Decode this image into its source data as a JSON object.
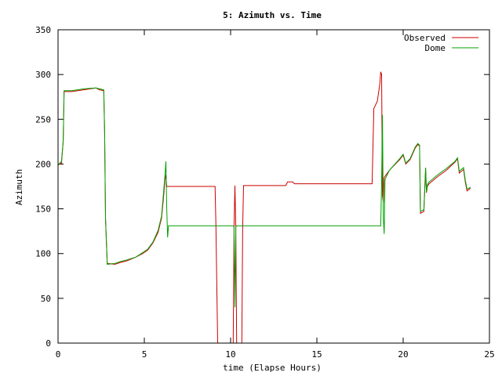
{
  "chart_data": {
    "type": "line",
    "title": "5: Azimuth vs. Time",
    "xlabel": "time (Elapse Hours)",
    "ylabel": "Azimuth",
    "xlim": [
      0,
      25
    ],
    "ylim": [
      0,
      350
    ],
    "xticks": [
      0,
      5,
      10,
      15,
      20,
      25
    ],
    "yticks": [
      0,
      50,
      100,
      150,
      200,
      250,
      300,
      350
    ],
    "grid": false,
    "legend_position": "top-right",
    "series": [
      {
        "name": "Observed",
        "color": "#cc0000",
        "points": [
          [
            0,
            199
          ],
          [
            0.2,
            201
          ],
          [
            0.3,
            226
          ],
          [
            0.35,
            281
          ],
          [
            0.8,
            281
          ],
          [
            1.5,
            283
          ],
          [
            2.2,
            285
          ],
          [
            2.4,
            283
          ],
          [
            2.65,
            282
          ],
          [
            2.7,
            235
          ],
          [
            2.75,
            140
          ],
          [
            2.85,
            89
          ],
          [
            3.3,
            88
          ],
          [
            3.6,
            90
          ],
          [
            4,
            92
          ],
          [
            4.5,
            96
          ],
          [
            4.9,
            100
          ],
          [
            5.2,
            104
          ],
          [
            5.5,
            112
          ],
          [
            5.8,
            124
          ],
          [
            6.0,
            140
          ],
          [
            6.1,
            160
          ],
          [
            6.2,
            183
          ],
          [
            6.25,
            188
          ],
          [
            6.3,
            175
          ],
          [
            6.35,
            175
          ],
          [
            9.1,
            175
          ],
          [
            9.15,
            130
          ],
          [
            9.25,
            0
          ],
          [
            10.15,
            0
          ],
          [
            10.2,
            130
          ],
          [
            10.25,
            176
          ],
          [
            10.3,
            130
          ],
          [
            10.35,
            0
          ],
          [
            10.65,
            0
          ],
          [
            10.7,
            130
          ],
          [
            10.75,
            176
          ],
          [
            13.2,
            176
          ],
          [
            13.3,
            180
          ],
          [
            13.6,
            180
          ],
          [
            13.7,
            178
          ],
          [
            18.2,
            178
          ],
          [
            18.3,
            262
          ],
          [
            18.5,
            270
          ],
          [
            18.65,
            290
          ],
          [
            18.7,
            303
          ],
          [
            18.75,
            300
          ],
          [
            18.8,
            165
          ],
          [
            18.85,
            157
          ],
          [
            18.9,
            185
          ],
          [
            19.2,
            193
          ],
          [
            19.8,
            205
          ],
          [
            20.0,
            210
          ],
          [
            20.15,
            200
          ],
          [
            20.4,
            205
          ],
          [
            20.7,
            218
          ],
          [
            20.85,
            222
          ],
          [
            20.95,
            220
          ],
          [
            21.0,
            145
          ],
          [
            21.2,
            147
          ],
          [
            21.3,
            195
          ],
          [
            21.35,
            168
          ],
          [
            21.4,
            175
          ],
          [
            21.5,
            178
          ],
          [
            22,
            186
          ],
          [
            22.5,
            193
          ],
          [
            23,
            202
          ],
          [
            23.15,
            206
          ],
          [
            23.25,
            190
          ],
          [
            23.5,
            194
          ],
          [
            23.6,
            180
          ],
          [
            23.7,
            170
          ],
          [
            23.9,
            173
          ]
        ]
      },
      {
        "name": "Dome",
        "color": "#00a000",
        "points": [
          [
            0,
            199
          ],
          [
            0.2,
            203
          ],
          [
            0.3,
            226
          ],
          [
            0.35,
            282
          ],
          [
            0.8,
            282
          ],
          [
            1.5,
            284
          ],
          [
            2.2,
            285
          ],
          [
            2.4,
            284
          ],
          [
            2.65,
            283
          ],
          [
            2.7,
            235
          ],
          [
            2.75,
            140
          ],
          [
            2.85,
            88
          ],
          [
            3.3,
            89
          ],
          [
            3.6,
            91
          ],
          [
            4,
            93
          ],
          [
            4.5,
            96
          ],
          [
            4.9,
            101
          ],
          [
            5.2,
            105
          ],
          [
            5.5,
            113
          ],
          [
            5.8,
            126
          ],
          [
            6.0,
            142
          ],
          [
            6.1,
            165
          ],
          [
            6.2,
            188
          ],
          [
            6.25,
            203
          ],
          [
            6.3,
            150
          ],
          [
            6.35,
            118
          ],
          [
            6.4,
            131
          ],
          [
            9.1,
            131
          ],
          [
            10.15,
            131
          ],
          [
            10.2,
            130
          ],
          [
            10.25,
            40
          ],
          [
            10.3,
            130
          ],
          [
            10.35,
            131
          ],
          [
            18.7,
            131
          ],
          [
            18.75,
            180
          ],
          [
            18.8,
            255
          ],
          [
            18.85,
            140
          ],
          [
            18.9,
            122
          ],
          [
            18.95,
            183
          ],
          [
            19.2,
            193
          ],
          [
            19.8,
            206
          ],
          [
            20.0,
            211
          ],
          [
            20.15,
            201
          ],
          [
            20.4,
            206
          ],
          [
            20.7,
            219
          ],
          [
            20.85,
            223
          ],
          [
            20.95,
            221
          ],
          [
            21.0,
            147
          ],
          [
            21.2,
            149
          ],
          [
            21.3,
            196
          ],
          [
            21.35,
            169
          ],
          [
            21.4,
            177
          ],
          [
            21.5,
            180
          ],
          [
            22,
            188
          ],
          [
            22.5,
            195
          ],
          [
            23,
            203
          ],
          [
            23.15,
            207
          ],
          [
            23.25,
            192
          ],
          [
            23.5,
            196
          ],
          [
            23.6,
            182
          ],
          [
            23.7,
            172
          ],
          [
            23.9,
            174
          ]
        ]
      }
    ]
  }
}
